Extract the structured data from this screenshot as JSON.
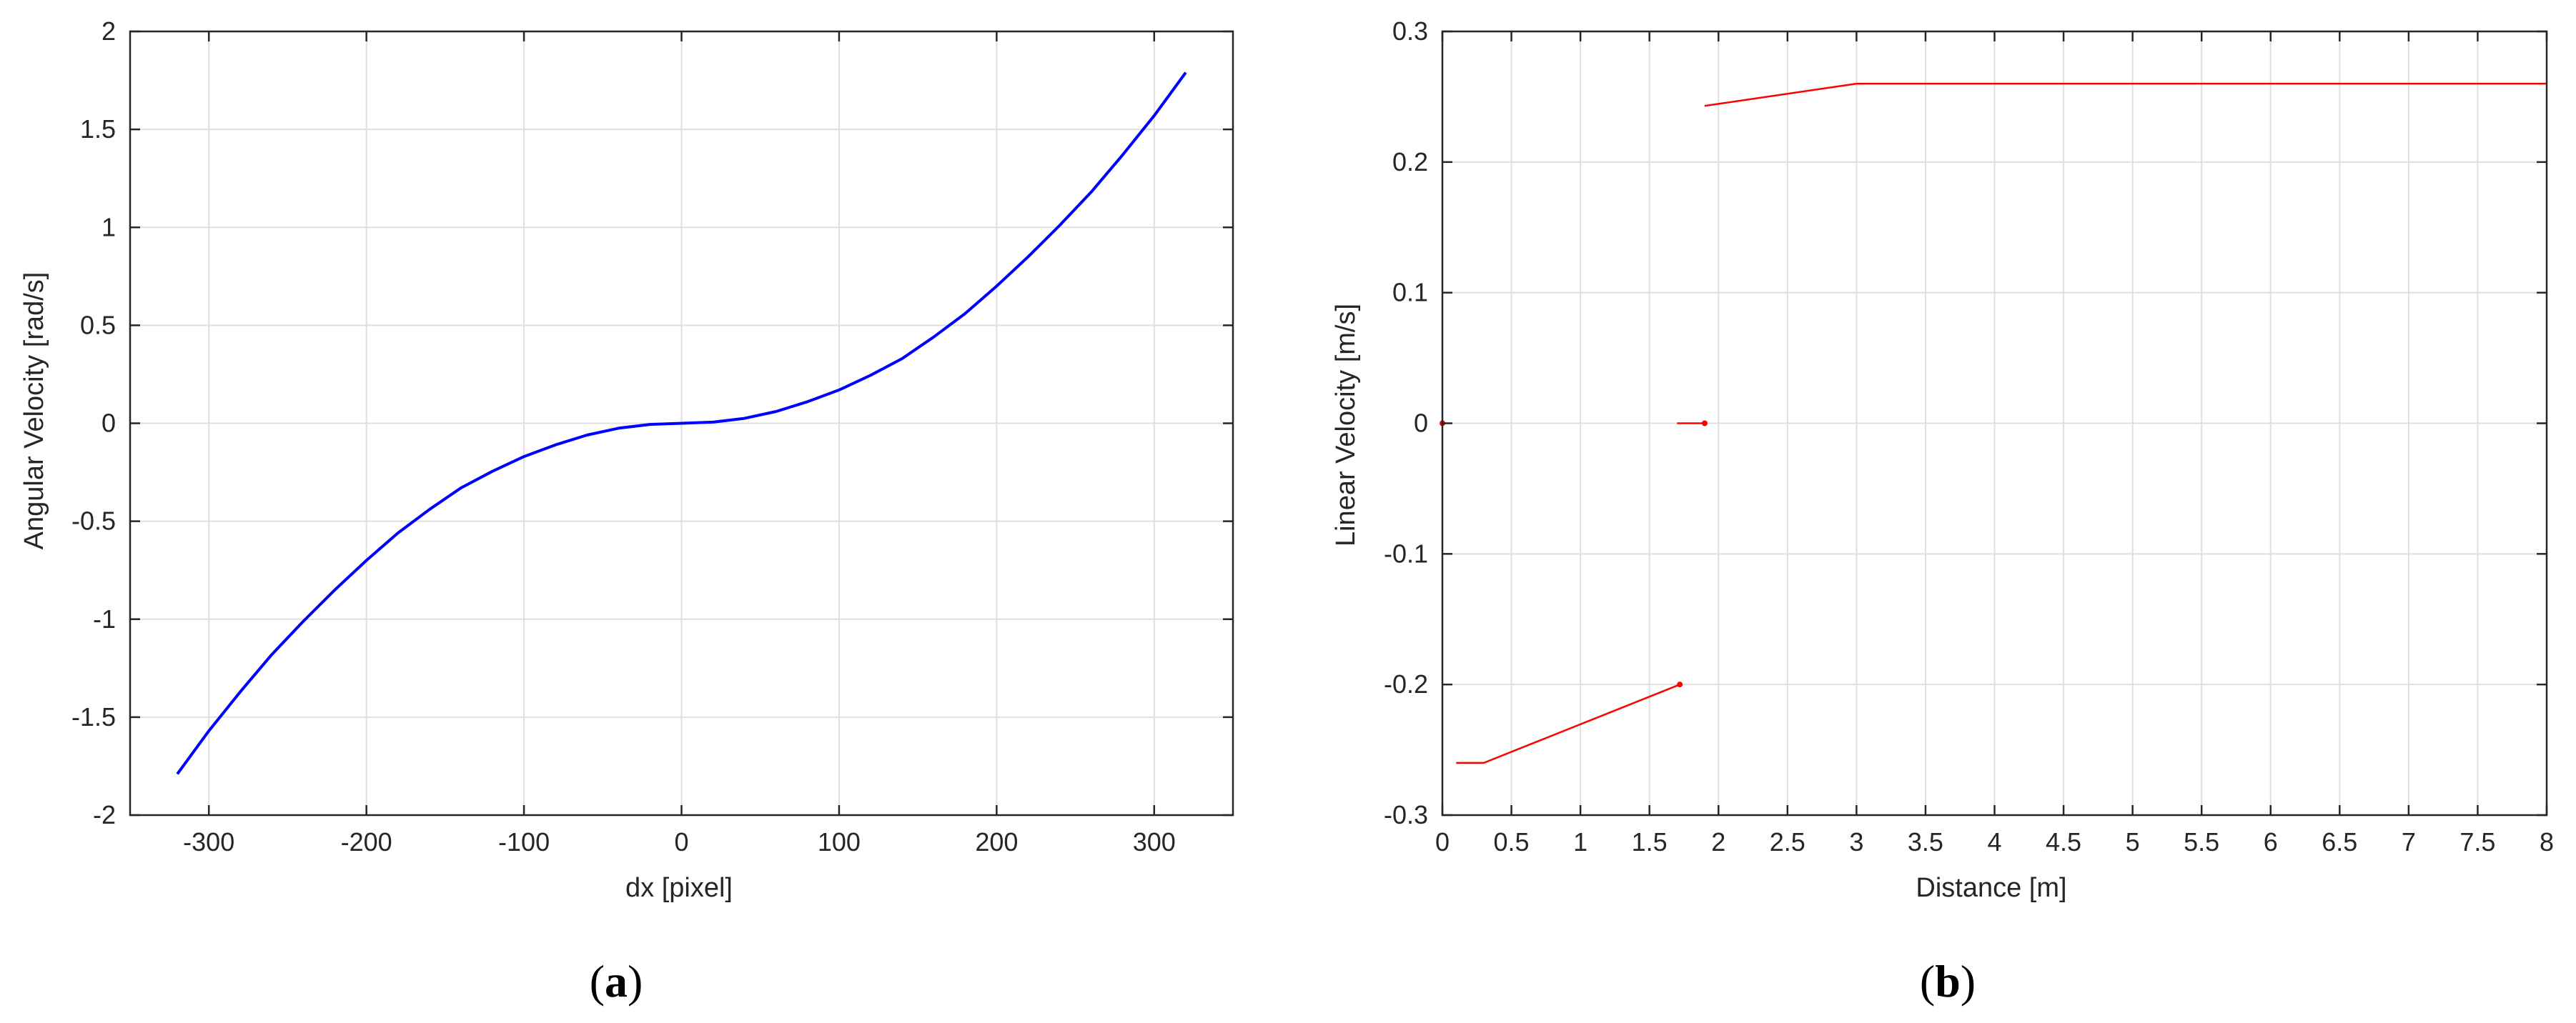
{
  "chart_data": [
    {
      "type": "line",
      "panel_caption": "a",
      "xlabel": "dx [pixel]",
      "ylabel": "Angular Velocity [rad/s]",
      "xlim": [
        -350,
        350
      ],
      "ylim": [
        -2,
        2
      ],
      "grid": true,
      "xticks": [
        -300,
        -200,
        -100,
        0,
        100,
        200,
        300
      ],
      "xtick_labels": [
        "-300",
        "-200",
        "-100",
        "0",
        "100",
        "200",
        "300"
      ],
      "yticks": [
        -2,
        -1.5,
        -1,
        -0.5,
        0,
        0.5,
        1,
        1.5,
        2
      ],
      "ytick_labels": [
        "-2",
        "-1.5",
        "-1",
        "-0.5",
        "0",
        "0.5",
        "1",
        "1.5",
        "2"
      ],
      "series": [
        {
          "color": "#0000ff",
          "x": [
            -320,
            -300,
            -280,
            -260,
            -240,
            -220,
            -200,
            -180,
            -160,
            -140,
            -120,
            -100,
            -80,
            -60,
            -40,
            -20,
            0,
            20,
            40,
            60,
            80,
            100,
            120,
            140,
            160,
            180,
            200,
            220,
            240,
            260,
            280,
            300,
            320
          ],
          "y": [
            -1.79,
            -1.57,
            -1.37,
            -1.18,
            -1.01,
            -0.85,
            -0.7,
            -0.56,
            -0.44,
            -0.33,
            -0.245,
            -0.17,
            -0.11,
            -0.06,
            -0.025,
            -0.006,
            0,
            0.006,
            0.025,
            0.06,
            0.11,
            0.17,
            0.245,
            0.33,
            0.44,
            0.56,
            0.7,
            0.85,
            1.01,
            1.18,
            1.37,
            1.57,
            1.79
          ]
        }
      ]
    },
    {
      "type": "line",
      "panel_caption": "b",
      "xlabel": "Distance [m]",
      "ylabel": "Linear Velocity [m/s]",
      "xlim": [
        0,
        8
      ],
      "ylim": [
        -0.3,
        0.3
      ],
      "grid": true,
      "xticks": [
        0,
        0.5,
        1,
        1.5,
        2,
        2.5,
        3,
        3.5,
        4,
        4.5,
        5,
        5.5,
        6,
        6.5,
        7,
        7.5,
        8
      ],
      "xtick_labels": [
        "0",
        "0.5",
        "1",
        "1.5",
        "2",
        "2.5",
        "3",
        "3.5",
        "4",
        "4.5",
        "5",
        "5.5",
        "6",
        "6.5",
        "7",
        "7.5",
        "8"
      ],
      "yticks": [
        -0.3,
        -0.2,
        -0.1,
        0,
        0.1,
        0.2,
        0.3
      ],
      "ytick_labels": [
        "-0.3",
        "-0.2",
        "-0.1",
        "0",
        "0.1",
        "0.2",
        "0.3"
      ],
      "series": [
        {
          "color": "#ff0000",
          "segments": [
            {
              "x": [
                0.1,
                0.3,
                1.72
              ],
              "y": [
                -0.26,
                -0.26,
                -0.2
              ]
            },
            {
              "x": [
                1.72
              ],
              "y": [
                -0.2
              ]
            },
            {
              "x": [
                0
              ],
              "y": [
                0
              ]
            },
            {
              "x": [
                1.7,
                1.9
              ],
              "y": [
                0,
                0
              ]
            },
            {
              "x": [
                1.9
              ],
              "y": [
                0
              ]
            },
            {
              "x": [
                1.9,
                3.0,
                8.0
              ],
              "y": [
                0.243,
                0.26,
                0.26
              ]
            }
          ]
        }
      ]
    }
  ]
}
